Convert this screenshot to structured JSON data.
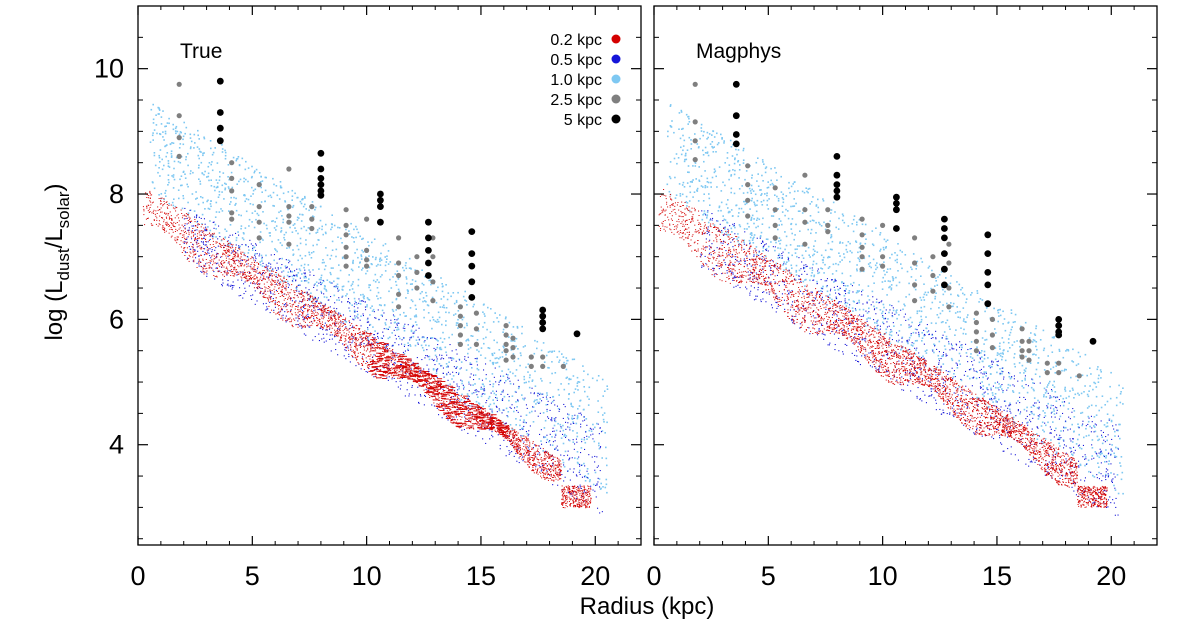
{
  "chart_data": {
    "type": "scatter",
    "xlabel": "Radius (kpc)",
    "ylabel_parts": [
      "log (L",
      "dust",
      "/L",
      "solar",
      ")"
    ],
    "xlim": [
      0,
      22
    ],
    "ylim": [
      2.4,
      11.0
    ],
    "xticks": [
      0,
      5,
      10,
      15,
      20
    ],
    "yticks": [
      4,
      6,
      8,
      10
    ],
    "x_tick_labels": [
      "0",
      "5",
      "10",
      "15",
      "20"
    ],
    "y_tick_labels": [
      "4",
      "6",
      "8",
      "10"
    ],
    "legend": {
      "placement": "top-right of left panel",
      "entries": [
        {
          "label": "0.2 kpc",
          "color": "#d40000"
        },
        {
          "label": "0.5 kpc",
          "color": "#1515d8"
        },
        {
          "label": "1.0 kpc",
          "color": "#7ec8f2"
        },
        {
          "label": "2.5 kpc",
          "color": "#7f7f7f"
        },
        {
          "label": "5 kpc",
          "color": "#000000"
        }
      ]
    },
    "panels": [
      {
        "title": "True",
        "series": [
          {
            "name": "5 kpc",
            "color": "#000000",
            "points": [
              [
                3.6,
                9.8
              ],
              [
                3.6,
                9.3
              ],
              [
                3.6,
                9.05
              ],
              [
                3.6,
                8.85
              ],
              [
                8,
                8.65
              ],
              [
                8,
                8.4
              ],
              [
                8,
                8.25
              ],
              [
                8,
                8.15
              ],
              [
                8,
                8.05
              ],
              [
                8,
                7.98
              ],
              [
                10.6,
                8.0
              ],
              [
                10.6,
                7.9
              ],
              [
                10.6,
                7.8
              ],
              [
                10.6,
                7.55
              ],
              [
                12.7,
                7.55
              ],
              [
                12.7,
                7.3
              ],
              [
                12.7,
                7.1
              ],
              [
                12.7,
                6.9
              ],
              [
                12.7,
                6.7
              ],
              [
                14.6,
                7.4
              ],
              [
                14.6,
                7.05
              ],
              [
                14.6,
                6.85
              ],
              [
                14.6,
                6.6
              ],
              [
                14.6,
                6.35
              ],
              [
                17.7,
                6.15
              ],
              [
                17.7,
                6.05
              ],
              [
                17.7,
                5.95
              ],
              [
                17.7,
                5.85
              ],
              [
                19.2,
                5.77
              ]
            ]
          },
          {
            "name": "2.5 kpc",
            "color": "#7f7f7f",
            "points": [
              [
                1.8,
                9.75
              ],
              [
                1.8,
                9.25
              ],
              [
                1.8,
                8.9
              ],
              [
                1.8,
                8.6
              ],
              [
                4.1,
                8.5
              ],
              [
                4.1,
                8.25
              ],
              [
                4.1,
                8.05
              ],
              [
                4.1,
                7.7
              ],
              [
                4.1,
                7.6
              ],
              [
                5.3,
                8.15
              ],
              [
                5.3,
                7.8
              ],
              [
                5.3,
                7.55
              ],
              [
                5.3,
                7.3
              ],
              [
                6.6,
                8.4
              ],
              [
                6.6,
                7.8
              ],
              [
                6.6,
                7.65
              ],
              [
                6.6,
                7.55
              ],
              [
                6.6,
                7.2
              ],
              [
                7.6,
                7.8
              ],
              [
                7.6,
                7.6
              ],
              [
                7.6,
                7.45
              ],
              [
                9.1,
                7.75
              ],
              [
                9.1,
                7.5
              ],
              [
                9.1,
                7.35
              ],
              [
                9.1,
                7.15
              ],
              [
                9.1,
                7.0
              ],
              [
                9.1,
                6.85
              ],
              [
                10.0,
                7.6
              ],
              [
                10.0,
                7.1
              ],
              [
                10.0,
                6.95
              ],
              [
                10.0,
                6.85
              ],
              [
                11.4,
                7.3
              ],
              [
                11.4,
                6.9
              ],
              [
                11.4,
                6.7
              ],
              [
                11.4,
                6.4
              ],
              [
                11.4,
                6.2
              ],
              [
                12.2,
                7.0
              ],
              [
                12.2,
                6.75
              ],
              [
                12.2,
                6.5
              ],
              [
                12.9,
                7.3
              ],
              [
                12.9,
                7.0
              ],
              [
                12.9,
                6.6
              ],
              [
                12.9,
                6.3
              ],
              [
                14.1,
                6.2
              ],
              [
                14.1,
                6.05
              ],
              [
                14.1,
                5.9
              ],
              [
                14.1,
                5.75
              ],
              [
                14.1,
                5.6
              ],
              [
                14.8,
                6.1
              ],
              [
                14.8,
                5.85
              ],
              [
                14.8,
                5.6
              ],
              [
                16.1,
                5.9
              ],
              [
                16.1,
                5.75
              ],
              [
                16.1,
                5.6
              ],
              [
                16.1,
                5.5
              ],
              [
                16.1,
                5.35
              ],
              [
                16.4,
                5.7
              ],
              [
                16.4,
                5.55
              ],
              [
                16.4,
                5.4
              ],
              [
                17.2,
                5.4
              ],
              [
                17.2,
                5.25
              ],
              [
                17.7,
                5.4
              ],
              [
                17.7,
                5.25
              ],
              [
                18.6,
                5.25
              ]
            ]
          }
        ]
      },
      {
        "title": "Magphys",
        "series": [
          {
            "name": "5 kpc",
            "color": "#000000",
            "points": [
              [
                3.6,
                9.75
              ],
              [
                3.6,
                9.25
              ],
              [
                3.6,
                8.95
              ],
              [
                3.6,
                8.8
              ],
              [
                8,
                8.6
              ],
              [
                8,
                8.3
              ],
              [
                8,
                8.15
              ],
              [
                8,
                8.05
              ],
              [
                8,
                7.95
              ],
              [
                10.6,
                7.95
              ],
              [
                10.6,
                7.85
              ],
              [
                10.6,
                7.75
              ],
              [
                10.6,
                7.45
              ],
              [
                12.7,
                7.6
              ],
              [
                12.7,
                7.45
              ],
              [
                12.7,
                7.3
              ],
              [
                12.7,
                7.05
              ],
              [
                12.7,
                6.8
              ],
              [
                12.7,
                6.55
              ],
              [
                14.6,
                7.35
              ],
              [
                14.6,
                7.05
              ],
              [
                14.6,
                6.75
              ],
              [
                14.6,
                6.55
              ],
              [
                14.6,
                6.25
              ],
              [
                17.7,
                6.0
              ],
              [
                17.7,
                5.9
              ],
              [
                17.7,
                5.8
              ],
              [
                17.7,
                5.75
              ],
              [
                19.2,
                5.65
              ]
            ]
          },
          {
            "name": "2.5 kpc",
            "color": "#7f7f7f",
            "points": [
              [
                1.8,
                9.75
              ],
              [
                1.8,
                9.15
              ],
              [
                1.8,
                8.85
              ],
              [
                1.8,
                8.55
              ],
              [
                4.1,
                8.45
              ],
              [
                4.1,
                8.15
              ],
              [
                4.1,
                7.9
              ],
              [
                4.1,
                7.65
              ],
              [
                5.3,
                8.1
              ],
              [
                5.3,
                7.75
              ],
              [
                5.3,
                7.5
              ],
              [
                5.3,
                7.3
              ],
              [
                6.6,
                8.3
              ],
              [
                6.6,
                7.75
              ],
              [
                6.6,
                7.55
              ],
              [
                6.6,
                7.2
              ],
              [
                7.6,
                7.75
              ],
              [
                7.6,
                7.5
              ],
              [
                7.6,
                7.4
              ],
              [
                9.1,
                7.6
              ],
              [
                9.1,
                7.35
              ],
              [
                9.1,
                7.15
              ],
              [
                9.1,
                7.0
              ],
              [
                9.1,
                6.8
              ],
              [
                10.0,
                7.5
              ],
              [
                10.0,
                7.0
              ],
              [
                10.0,
                6.85
              ],
              [
                11.4,
                7.3
              ],
              [
                11.4,
                6.9
              ],
              [
                11.4,
                6.55
              ],
              [
                11.4,
                6.3
              ],
              [
                12.2,
                7.0
              ],
              [
                12.2,
                6.7
              ],
              [
                12.2,
                6.45
              ],
              [
                12.9,
                7.2
              ],
              [
                12.9,
                6.9
              ],
              [
                12.9,
                6.5
              ],
              [
                12.9,
                6.2
              ],
              [
                14.1,
                6.1
              ],
              [
                14.1,
                5.95
              ],
              [
                14.1,
                5.8
              ],
              [
                14.1,
                5.65
              ],
              [
                14.1,
                5.5
              ],
              [
                14.8,
                6.0
              ],
              [
                14.8,
                5.75
              ],
              [
                14.8,
                5.55
              ],
              [
                16.1,
                5.85
              ],
              [
                16.1,
                5.65
              ],
              [
                16.1,
                5.5
              ],
              [
                16.1,
                5.4
              ],
              [
                16.4,
                5.65
              ],
              [
                16.4,
                5.5
              ],
              [
                16.4,
                5.35
              ],
              [
                17.2,
                5.3
              ],
              [
                17.2,
                5.15
              ],
              [
                17.7,
                5.3
              ],
              [
                17.7,
                5.15
              ],
              [
                18.6,
                5.1
              ]
            ]
          }
        ]
      }
    ],
    "note": "Dense small-point clouds (0.2 kpc red, 0.5 kpc blue, 1.0 kpc light blue) are rendered as thousands of sub-pixel points; they are generated procedurally to reproduce the cloud appearance."
  }
}
